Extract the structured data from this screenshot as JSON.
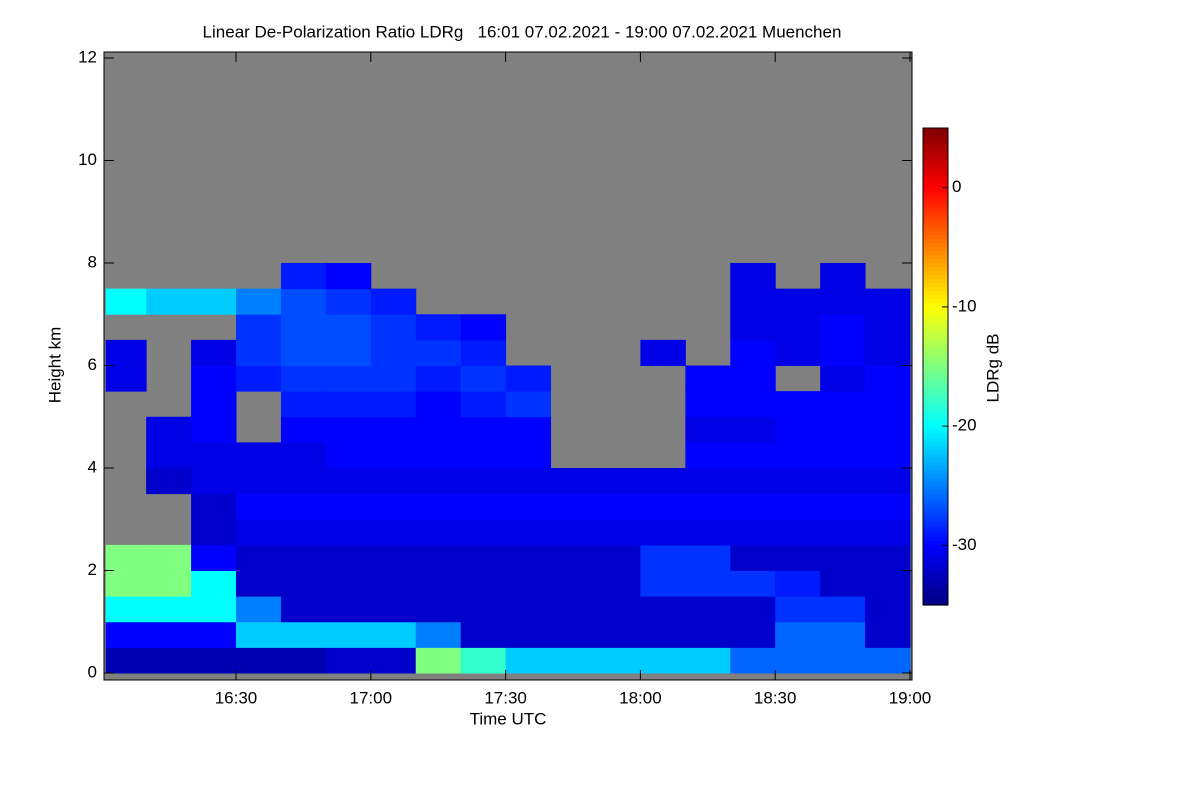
{
  "chart_data": {
    "type": "heatmap",
    "title": "Linear De-Polarization Ratio LDRg   16:01 07.02.2021 - 19:00 07.02.2021 Muenchen",
    "xlabel": "Time UTC",
    "ylabel": "Height km",
    "colorbar_label": "LDRg dB",
    "xlim": [
      961,
      1140
    ],
    "xticks": [
      {
        "value": 990,
        "label": "16:30"
      },
      {
        "value": 1020,
        "label": "17:00"
      },
      {
        "value": 1050,
        "label": "17:30"
      },
      {
        "value": 1080,
        "label": "18:00"
      },
      {
        "value": 1110,
        "label": "18:30"
      },
      {
        "value": 1140,
        "label": "19:00"
      }
    ],
    "ylim": [
      0,
      12
    ],
    "yticks": [
      0,
      2,
      4,
      6,
      8,
      10,
      12
    ],
    "zlim": [
      -35,
      5
    ],
    "zticks": [
      0,
      -10,
      -20,
      -30
    ],
    "colormap": "jet",
    "missing_color": "#808080",
    "xbins": [
      961,
      970,
      980,
      990,
      1000,
      1010,
      1020,
      1030,
      1040,
      1050,
      1060,
      1070,
      1080,
      1090,
      1100,
      1110,
      1120,
      1130,
      1140
    ],
    "ybins": [
      0,
      0.5,
      1,
      1.5,
      2,
      2.5,
      3,
      3.5,
      4,
      4.5,
      5,
      5.5,
      6,
      6.5,
      7,
      7.5,
      8
    ],
    "z": [
      [
        -33,
        -33,
        -33,
        -33,
        -33,
        -32,
        -32,
        -15,
        -18,
        -22,
        -22,
        -22,
        -22,
        -22,
        -26,
        -26,
        -26,
        -26
      ],
      [
        -30,
        -30,
        -30,
        -22,
        -22,
        -22,
        -22,
        -25,
        -32,
        -32,
        -32,
        -32,
        -32,
        -32,
        -32,
        -26,
        -26,
        -32
      ],
      [
        -20,
        -20,
        -20,
        -25,
        -32,
        -32,
        -32,
        -32,
        -32,
        -32,
        -32,
        -32,
        -32,
        -32,
        -32,
        -28,
        -28,
        -32
      ],
      [
        -15,
        -15,
        -20,
        -32,
        -32,
        -32,
        -32,
        -32,
        -32,
        -32,
        -32,
        -32,
        -28,
        -28,
        -28,
        -29,
        -32,
        -32
      ],
      [
        -15,
        -15,
        -30,
        -32,
        -32,
        -32,
        -32,
        -32,
        -32,
        -32,
        -32,
        -32,
        -28,
        -28,
        -32,
        -32,
        -32,
        -32
      ],
      [
        null,
        null,
        -32,
        -31,
        -31,
        -31,
        -31,
        -31,
        -31,
        -31,
        -31,
        -31,
        -31,
        -31,
        -31,
        -31,
        -31,
        -31
      ],
      [
        null,
        null,
        -32,
        -30,
        -30,
        -30,
        -30,
        -30,
        -30,
        -30,
        -30,
        -30,
        -30,
        -30,
        -30,
        -30,
        -30,
        -30
      ],
      [
        null,
        -32,
        -31,
        -31,
        -31,
        -31,
        -31,
        -31,
        -31,
        -31,
        -31,
        -31,
        -31,
        -31,
        -31,
        -31,
        -31,
        -31
      ],
      [
        null,
        -31,
        -31,
        -31,
        -31,
        -30,
        -30,
        -30,
        -30,
        -30,
        null,
        null,
        null,
        -30,
        -30,
        -30,
        -30,
        -30
      ],
      [
        null,
        -31,
        -30,
        null,
        -30,
        -30,
        -30,
        -30,
        -30,
        -30,
        null,
        null,
        null,
        -31,
        -31,
        -30,
        -30,
        -30
      ],
      [
        null,
        null,
        -30,
        null,
        -29,
        -29,
        -29,
        -30,
        -29,
        -28,
        null,
        null,
        null,
        -30,
        -30,
        -30,
        -30,
        -30
      ],
      [
        -31,
        null,
        -30,
        -29,
        -28,
        -28,
        -28,
        -29,
        -28,
        -29,
        null,
        null,
        null,
        -30,
        -30,
        null,
        -31,
        -30
      ],
      [
        -31,
        null,
        -31,
        -28,
        -27,
        -27,
        -28,
        -28,
        -29,
        null,
        null,
        null,
        -31,
        null,
        -30,
        -31,
        -30,
        -31
      ],
      [
        null,
        null,
        null,
        -28,
        -27,
        -27,
        -28,
        -29,
        -30,
        null,
        null,
        null,
        null,
        null,
        -31,
        -31,
        -30,
        -31
      ],
      [
        -20,
        -22,
        -22,
        -25,
        -27,
        -28,
        -29,
        null,
        null,
        null,
        null,
        null,
        null,
        null,
        -31,
        -31,
        -31,
        -31
      ],
      [
        null,
        null,
        null,
        null,
        -29,
        -30,
        null,
        null,
        null,
        null,
        null,
        null,
        null,
        null,
        -31,
        null,
        -31,
        null
      ]
    ]
  }
}
